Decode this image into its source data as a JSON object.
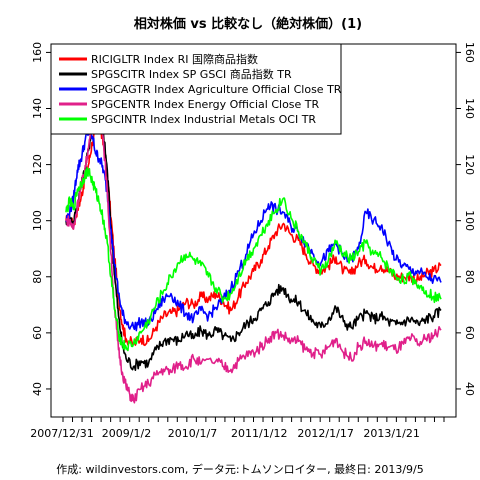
{
  "chart_data": {
    "type": "line",
    "title": "相対株価 vs 比較なし（絶対株価）(1)",
    "caption": "作成: wildinvestors.com, データ元:トムソンロイター, 最終日: 2013/9/5",
    "xlabel": "",
    "ylabel": "",
    "x_ticks": [
      "2007/12/31",
      "2009/1/2",
      "2010/1/7",
      "2011/1/12",
      "2012/1/17",
      "2013/1/21"
    ],
    "y_ticks": [
      "40",
      "60",
      "80",
      "100",
      "120",
      "140",
      "160"
    ],
    "ylim": [
      30,
      163
    ],
    "grid": false,
    "legend_position": "top-left",
    "series": [
      {
        "name": "RICIGLTR Index RI 国際商品指数",
        "color": "#ff0000",
        "points": [
          [
            0.0,
            100
          ],
          [
            0.01,
            101
          ],
          [
            0.02,
            98
          ],
          [
            0.03,
            104
          ],
          [
            0.04,
            108
          ],
          [
            0.05,
            115
          ],
          [
            0.06,
            120
          ],
          [
            0.07,
            128
          ],
          [
            0.08,
            132
          ],
          [
            0.09,
            134
          ],
          [
            0.1,
            127
          ],
          [
            0.11,
            117
          ],
          [
            0.12,
            101
          ],
          [
            0.13,
            86
          ],
          [
            0.14,
            73
          ],
          [
            0.15,
            63
          ],
          [
            0.16,
            58
          ],
          [
            0.18,
            56
          ],
          [
            0.2,
            58
          ],
          [
            0.22,
            57
          ],
          [
            0.24,
            62
          ],
          [
            0.26,
            66
          ],
          [
            0.28,
            67
          ],
          [
            0.3,
            68
          ],
          [
            0.32,
            71
          ],
          [
            0.34,
            70
          ],
          [
            0.36,
            73
          ],
          [
            0.38,
            72
          ],
          [
            0.4,
            74
          ],
          [
            0.42,
            71
          ],
          [
            0.44,
            68
          ],
          [
            0.46,
            73
          ],
          [
            0.48,
            78
          ],
          [
            0.5,
            82
          ],
          [
            0.52,
            86
          ],
          [
            0.54,
            91
          ],
          [
            0.56,
            96
          ],
          [
            0.58,
            99
          ],
          [
            0.6,
            95
          ],
          [
            0.62,
            93
          ],
          [
            0.64,
            88
          ],
          [
            0.66,
            84
          ],
          [
            0.68,
            82
          ],
          [
            0.7,
            84
          ],
          [
            0.72,
            87
          ],
          [
            0.74,
            82
          ],
          [
            0.76,
            81
          ],
          [
            0.78,
            85
          ],
          [
            0.8,
            86
          ],
          [
            0.82,
            83
          ],
          [
            0.84,
            84
          ],
          [
            0.86,
            82
          ],
          [
            0.88,
            80
          ],
          [
            0.9,
            80
          ],
          [
            0.92,
            80
          ],
          [
            0.94,
            79
          ],
          [
            0.96,
            81
          ],
          [
            0.98,
            82
          ],
          [
            1.0,
            84
          ]
        ]
      },
      {
        "name": "SPGSCITR Index SP GSCI 商品指数 TR",
        "color": "#000000",
        "points": [
          [
            0.0,
            100
          ],
          [
            0.01,
            101
          ],
          [
            0.02,
            99
          ],
          [
            0.03,
            106
          ],
          [
            0.04,
            112
          ],
          [
            0.05,
            118
          ],
          [
            0.06,
            125
          ],
          [
            0.07,
            135
          ],
          [
            0.08,
            140
          ],
          [
            0.09,
            139
          ],
          [
            0.1,
            131
          ],
          [
            0.11,
            118
          ],
          [
            0.12,
            98
          ],
          [
            0.13,
            80
          ],
          [
            0.14,
            66
          ],
          [
            0.15,
            56
          ],
          [
            0.16,
            51
          ],
          [
            0.18,
            48
          ],
          [
            0.2,
            50
          ],
          [
            0.22,
            49
          ],
          [
            0.24,
            54
          ],
          [
            0.26,
            57
          ],
          [
            0.28,
            58
          ],
          [
            0.3,
            57
          ],
          [
            0.32,
            60
          ],
          [
            0.34,
            58
          ],
          [
            0.36,
            61
          ],
          [
            0.38,
            59
          ],
          [
            0.4,
            61
          ],
          [
            0.42,
            59
          ],
          [
            0.44,
            57
          ],
          [
            0.46,
            60
          ],
          [
            0.48,
            63
          ],
          [
            0.5,
            65
          ],
          [
            0.52,
            68
          ],
          [
            0.54,
            71
          ],
          [
            0.56,
            75
          ],
          [
            0.58,
            76
          ],
          [
            0.6,
            72
          ],
          [
            0.62,
            71
          ],
          [
            0.64,
            67
          ],
          [
            0.66,
            64
          ],
          [
            0.68,
            62
          ],
          [
            0.7,
            65
          ],
          [
            0.72,
            69
          ],
          [
            0.74,
            64
          ],
          [
            0.76,
            62
          ],
          [
            0.78,
            65
          ],
          [
            0.8,
            67
          ],
          [
            0.82,
            65
          ],
          [
            0.84,
            66
          ],
          [
            0.86,
            64
          ],
          [
            0.88,
            63
          ],
          [
            0.9,
            64
          ],
          [
            0.92,
            65
          ],
          [
            0.94,
            63
          ],
          [
            0.96,
            65
          ],
          [
            0.98,
            66
          ],
          [
            1.0,
            68
          ]
        ]
      },
      {
        "name": "SPGCAGTR Index Agriculture Official Close TR",
        "color": "#0000ff",
        "points": [
          [
            0.0,
            100
          ],
          [
            0.01,
            103
          ],
          [
            0.02,
            108
          ],
          [
            0.03,
            118
          ],
          [
            0.04,
            122
          ],
          [
            0.05,
            128
          ],
          [
            0.06,
            132
          ],
          [
            0.07,
            130
          ],
          [
            0.08,
            124
          ],
          [
            0.09,
            122
          ],
          [
            0.1,
            118
          ],
          [
            0.11,
            110
          ],
          [
            0.12,
            97
          ],
          [
            0.13,
            84
          ],
          [
            0.14,
            74
          ],
          [
            0.15,
            67
          ],
          [
            0.16,
            64
          ],
          [
            0.18,
            62
          ],
          [
            0.2,
            64
          ],
          [
            0.22,
            63
          ],
          [
            0.24,
            68
          ],
          [
            0.26,
            72
          ],
          [
            0.28,
            74
          ],
          [
            0.3,
            70
          ],
          [
            0.32,
            67
          ],
          [
            0.34,
            65
          ],
          [
            0.36,
            68
          ],
          [
            0.38,
            66
          ],
          [
            0.4,
            69
          ],
          [
            0.42,
            72
          ],
          [
            0.44,
            76
          ],
          [
            0.46,
            82
          ],
          [
            0.48,
            88
          ],
          [
            0.5,
            95
          ],
          [
            0.52,
            100
          ],
          [
            0.54,
            106
          ],
          [
            0.56,
            104
          ],
          [
            0.58,
            103
          ],
          [
            0.6,
            98
          ],
          [
            0.62,
            96
          ],
          [
            0.64,
            92
          ],
          [
            0.66,
            88
          ],
          [
            0.68,
            85
          ],
          [
            0.7,
            89
          ],
          [
            0.72,
            92
          ],
          [
            0.74,
            87
          ],
          [
            0.76,
            86
          ],
          [
            0.78,
            90
          ],
          [
            0.8,
            103
          ],
          [
            0.82,
            100
          ],
          [
            0.84,
            98
          ],
          [
            0.86,
            92
          ],
          [
            0.88,
            86
          ],
          [
            0.9,
            84
          ],
          [
            0.92,
            82
          ],
          [
            0.94,
            82
          ],
          [
            0.96,
            80
          ],
          [
            0.98,
            79
          ],
          [
            1.0,
            78
          ]
        ]
      },
      {
        "name": "SPGCENTR Index Energy Official Close TR",
        "color": "#e0208a",
        "points": [
          [
            0.0,
            100
          ],
          [
            0.01,
            100
          ],
          [
            0.02,
            97
          ],
          [
            0.03,
            105
          ],
          [
            0.04,
            112
          ],
          [
            0.05,
            118
          ],
          [
            0.06,
            126
          ],
          [
            0.07,
            136
          ],
          [
            0.08,
            142
          ],
          [
            0.09,
            140
          ],
          [
            0.1,
            128
          ],
          [
            0.11,
            110
          ],
          [
            0.12,
            88
          ],
          [
            0.13,
            68
          ],
          [
            0.14,
            54
          ],
          [
            0.15,
            46
          ],
          [
            0.16,
            41
          ],
          [
            0.17,
            38
          ],
          [
            0.18,
            36
          ],
          [
            0.2,
            40
          ],
          [
            0.22,
            42
          ],
          [
            0.24,
            45
          ],
          [
            0.26,
            47
          ],
          [
            0.28,
            46
          ],
          [
            0.3,
            49
          ],
          [
            0.32,
            48
          ],
          [
            0.34,
            51
          ],
          [
            0.36,
            49
          ],
          [
            0.4,
            50
          ],
          [
            0.42,
            48
          ],
          [
            0.44,
            47
          ],
          [
            0.46,
            50
          ],
          [
            0.48,
            52
          ],
          [
            0.5,
            53
          ],
          [
            0.52,
            55
          ],
          [
            0.54,
            58
          ],
          [
            0.56,
            60
          ],
          [
            0.58,
            59
          ],
          [
            0.6,
            57
          ],
          [
            0.62,
            57
          ],
          [
            0.64,
            54
          ],
          [
            0.66,
            53
          ],
          [
            0.68,
            52
          ],
          [
            0.7,
            55
          ],
          [
            0.72,
            58
          ],
          [
            0.74,
            53
          ],
          [
            0.76,
            51
          ],
          [
            0.78,
            55
          ],
          [
            0.8,
            57
          ],
          [
            0.82,
            55
          ],
          [
            0.84,
            56
          ],
          [
            0.86,
            55
          ],
          [
            0.88,
            54
          ],
          [
            0.9,
            56
          ],
          [
            0.92,
            58
          ],
          [
            0.94,
            56
          ],
          [
            0.96,
            58
          ],
          [
            0.98,
            59
          ],
          [
            1.0,
            61
          ]
        ]
      },
      {
        "name": "SPGCINTR Index Industrial Metals OCI TR",
        "color": "#00ff00",
        "points": [
          [
            0.0,
            103
          ],
          [
            0.01,
            107
          ],
          [
            0.02,
            104
          ],
          [
            0.03,
            111
          ],
          [
            0.04,
            113
          ],
          [
            0.05,
            116
          ],
          [
            0.06,
            118
          ],
          [
            0.07,
            114
          ],
          [
            0.08,
            110
          ],
          [
            0.09,
            106
          ],
          [
            0.1,
            100
          ],
          [
            0.11,
            92
          ],
          [
            0.12,
            80
          ],
          [
            0.13,
            68
          ],
          [
            0.14,
            60
          ],
          [
            0.15,
            56
          ],
          [
            0.16,
            55
          ],
          [
            0.18,
            56
          ],
          [
            0.2,
            60
          ],
          [
            0.22,
            64
          ],
          [
            0.24,
            70
          ],
          [
            0.26,
            75
          ],
          [
            0.28,
            80
          ],
          [
            0.3,
            85
          ],
          [
            0.32,
            88
          ],
          [
            0.34,
            86
          ],
          [
            0.36,
            84
          ],
          [
            0.38,
            80
          ],
          [
            0.4,
            76
          ],
          [
            0.42,
            72
          ],
          [
            0.44,
            74
          ],
          [
            0.46,
            80
          ],
          [
            0.48,
            86
          ],
          [
            0.5,
            90
          ],
          [
            0.52,
            95
          ],
          [
            0.54,
            100
          ],
          [
            0.56,
            104
          ],
          [
            0.58,
            108
          ],
          [
            0.6,
            101
          ],
          [
            0.62,
            96
          ],
          [
            0.64,
            91
          ],
          [
            0.66,
            86
          ],
          [
            0.68,
            82
          ],
          [
            0.7,
            86
          ],
          [
            0.72,
            92
          ],
          [
            0.74,
            88
          ],
          [
            0.76,
            86
          ],
          [
            0.78,
            89
          ],
          [
            0.8,
            92
          ],
          [
            0.82,
            88
          ],
          [
            0.84,
            87
          ],
          [
            0.86,
            83
          ],
          [
            0.88,
            80
          ],
          [
            0.9,
            79
          ],
          [
            0.92,
            80
          ],
          [
            0.94,
            77
          ],
          [
            0.96,
            75
          ],
          [
            0.98,
            73
          ],
          [
            1.0,
            72
          ]
        ]
      }
    ]
  }
}
